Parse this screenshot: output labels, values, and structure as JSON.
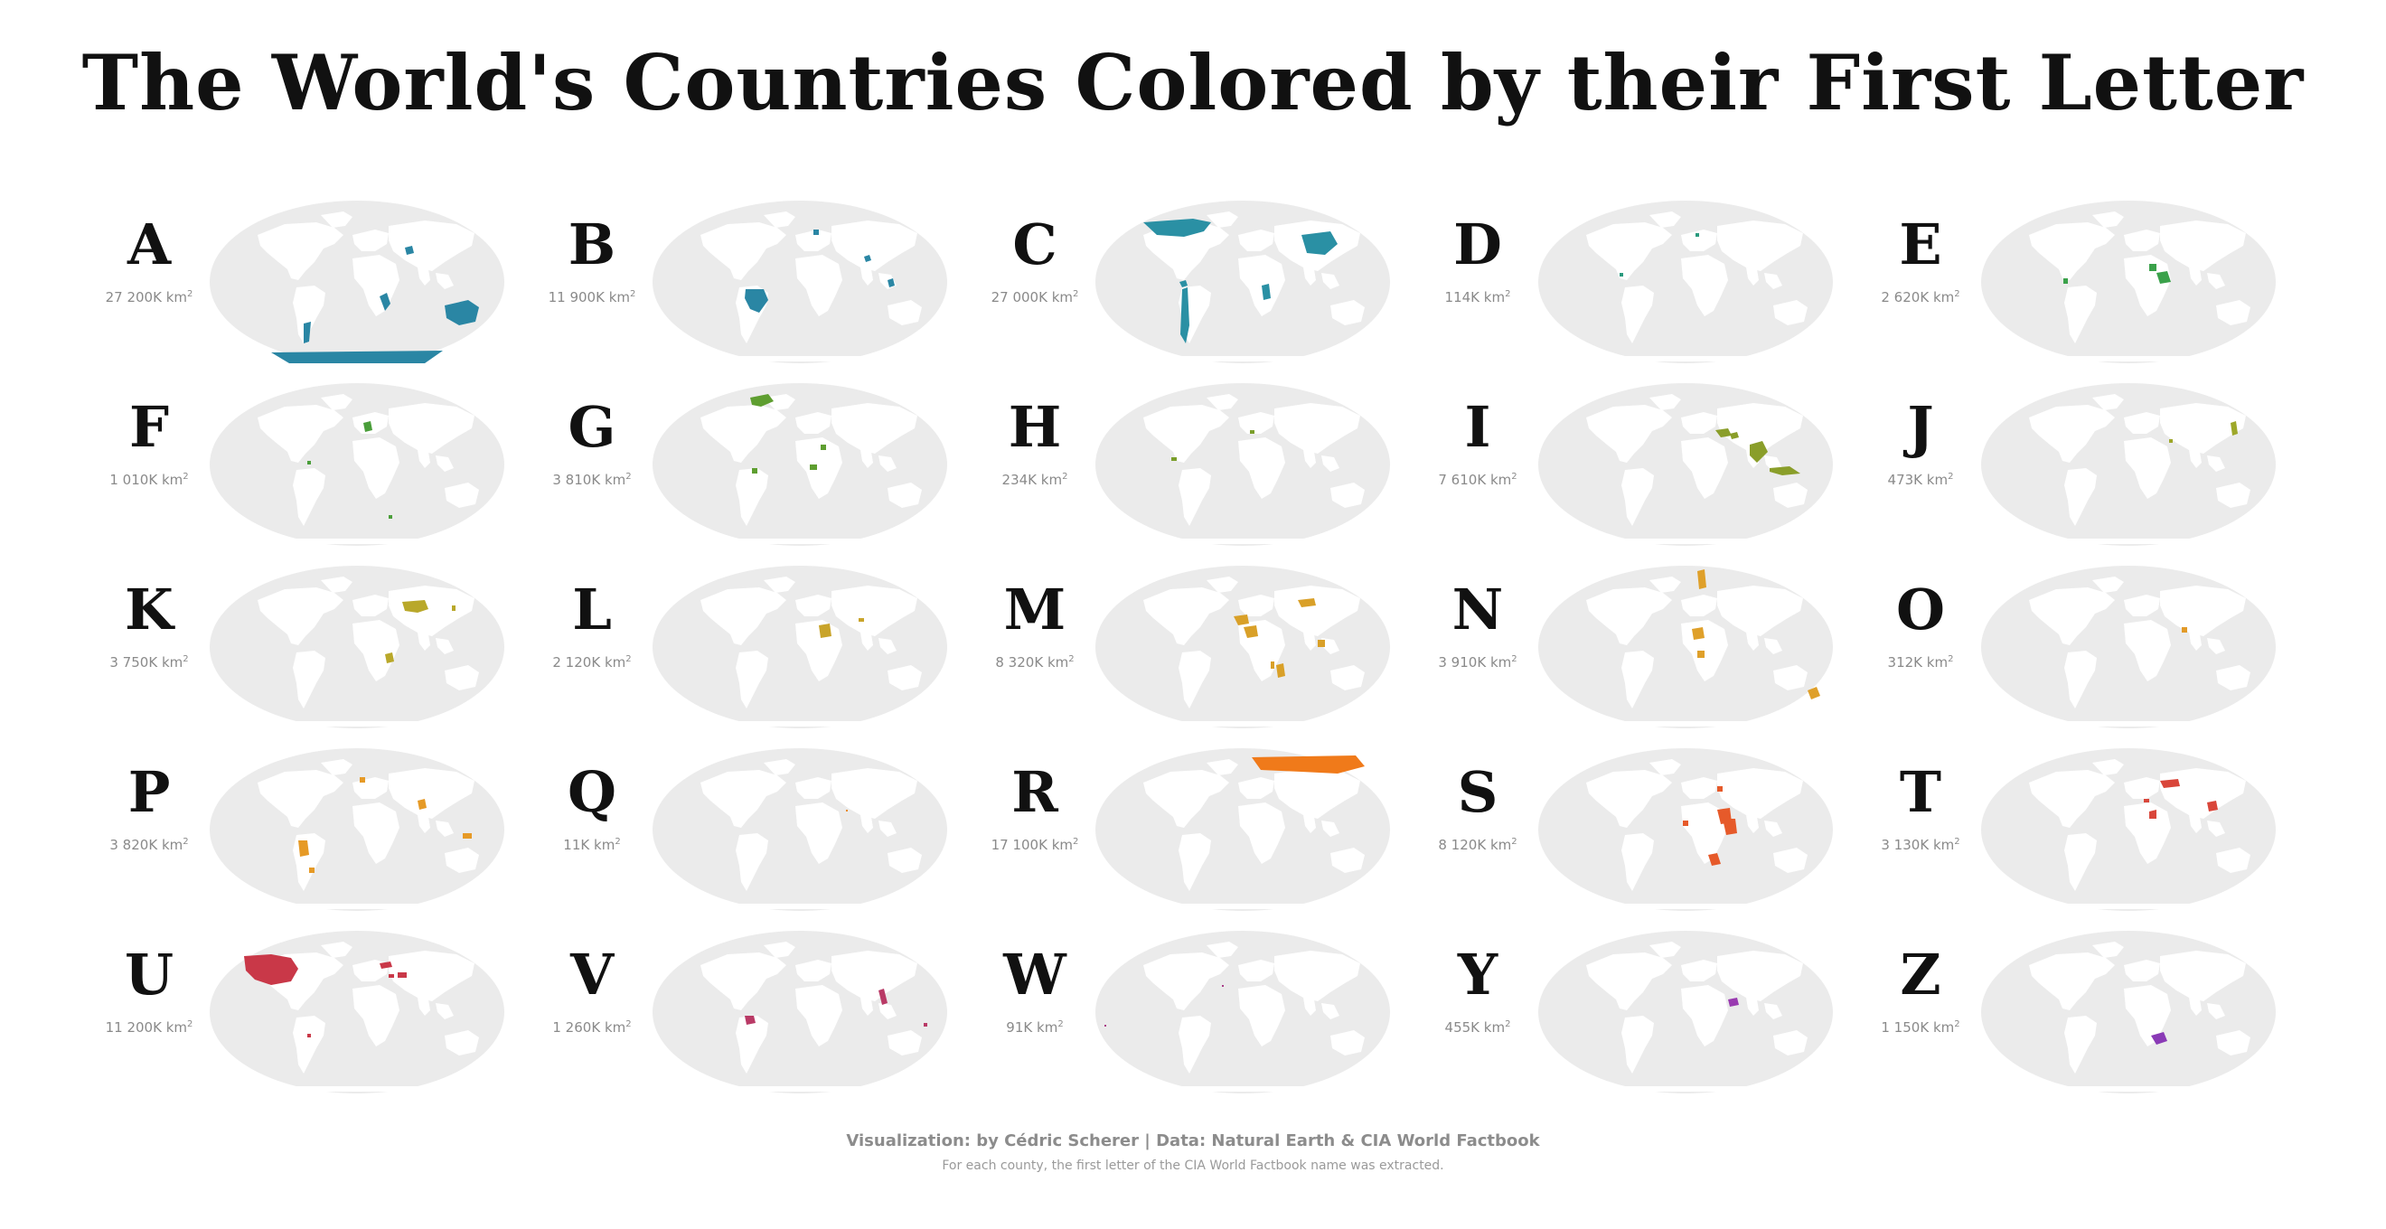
{
  "title": "The World's Countries Colored by their First Letter",
  "unit_label": "km",
  "unit_sup": "2",
  "colors": {
    "ocean": "#ebebeb",
    "land": "#ffffff",
    "A": "#2a86a4",
    "B": "#2a86a4",
    "C": "#2a90a4",
    "D": "#2a9a7e",
    "E": "#3aa14a",
    "F": "#4a9e3a",
    "G": "#5e9e30",
    "H": "#7a9e2a",
    "I": "#8a9e2a",
    "J": "#9ea82a",
    "K": "#b9a82a",
    "L": "#c9a42a",
    "M": "#d9a028",
    "N": "#dfa02a",
    "O": "#e29a28",
    "P": "#e69a26",
    "Q": "#e88a22",
    "R": "#f07a1a",
    "S": "#e65a2a",
    "T": "#d9463a",
    "U": "#c93848",
    "V": "#b93a66",
    "W": "#a83a86",
    "X": "#983aa6",
    "Y": "#993ab0",
    "Z": "#8a3ab6"
  },
  "panels": [
    {
      "letter": "A",
      "area": "27 200K",
      "icon": "map-A"
    },
    {
      "letter": "B",
      "area": "11 900K",
      "icon": "map-B"
    },
    {
      "letter": "C",
      "area": "27 000K",
      "icon": "map-C"
    },
    {
      "letter": "D",
      "area": "114K",
      "icon": "map-D"
    },
    {
      "letter": "E",
      "area": "2 620K",
      "icon": "map-E"
    },
    {
      "letter": "F",
      "area": "1 010K",
      "icon": "map-F"
    },
    {
      "letter": "G",
      "area": "3 810K",
      "icon": "map-G"
    },
    {
      "letter": "H",
      "area": "234K",
      "icon": "map-H"
    },
    {
      "letter": "I",
      "area": "7 610K",
      "icon": "map-I"
    },
    {
      "letter": "J",
      "area": "473K",
      "icon": "map-J"
    },
    {
      "letter": "K",
      "area": "3 750K",
      "icon": "map-K"
    },
    {
      "letter": "L",
      "area": "2 120K",
      "icon": "map-L"
    },
    {
      "letter": "M",
      "area": "8 320K",
      "icon": "map-M"
    },
    {
      "letter": "N",
      "area": "3 910K",
      "icon": "map-N"
    },
    {
      "letter": "O",
      "area": "312K",
      "icon": "map-O"
    },
    {
      "letter": "P",
      "area": "3 820K",
      "icon": "map-P"
    },
    {
      "letter": "Q",
      "area": "11K",
      "icon": "map-Q"
    },
    {
      "letter": "R",
      "area": "17 100K",
      "icon": "map-R"
    },
    {
      "letter": "S",
      "area": "8 120K",
      "icon": "map-S"
    },
    {
      "letter": "T",
      "area": "3 130K",
      "icon": "map-T"
    },
    {
      "letter": "U",
      "area": "11 200K",
      "icon": "map-U"
    },
    {
      "letter": "V",
      "area": "1 260K",
      "icon": "map-V"
    },
    {
      "letter": "W",
      "area": "91K",
      "icon": "map-W"
    },
    {
      "letter": "Y",
      "area": "455K",
      "icon": "map-Y"
    },
    {
      "letter": "Z",
      "area": "1 150K",
      "icon": "map-Z"
    }
  ],
  "footer": {
    "credit": "Visualization: by Cédric Scherer | Data: Natural Earth & CIA World Factbook",
    "note": "For each county, the first letter of the CIA World Factbook name was extracted."
  }
}
